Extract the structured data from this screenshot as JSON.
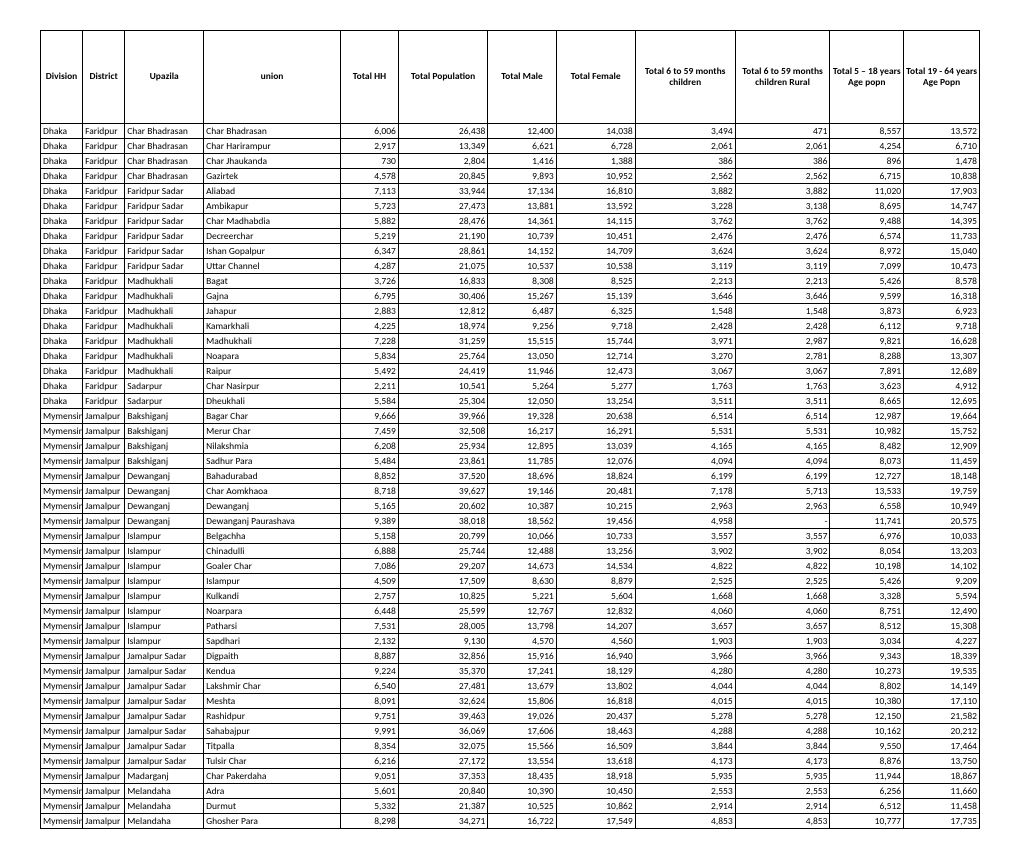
{
  "columns": [
    "Division",
    "District",
    "Upazila",
    "union",
    "Total HH",
    "Total Population",
    "Total Male",
    "Total Female",
    "Total 6 to  59 months children",
    "Total 6 to  59 months children Rural",
    "Total 5 – 18 years Age popn",
    "Total 19 - 64 years Age  Popn"
  ],
  "col_align": [
    "txt",
    "txt",
    "txt",
    "txt",
    "num",
    "num",
    "num",
    "num",
    "num",
    "num",
    "num",
    "num"
  ],
  "rows": [
    [
      "Dhaka",
      "Faridpur",
      "Char Bhadrasan",
      "Char Bhadrasan",
      "6,006",
      "26,438",
      "12,400",
      "14,038",
      "3,494",
      "471",
      "8,557",
      "13,572"
    ],
    [
      "Dhaka",
      "Faridpur",
      "Char Bhadrasan",
      "Char Harirampur",
      "2,917",
      "13,349",
      "6,621",
      "6,728",
      "2,061",
      "2,061",
      "4,254",
      "6,710"
    ],
    [
      "Dhaka",
      "Faridpur",
      "Char Bhadrasan",
      "Char Jhaukanda",
      "730",
      "2,804",
      "1,416",
      "1,388",
      "386",
      "386",
      "896",
      "1,478"
    ],
    [
      "Dhaka",
      "Faridpur",
      "Char Bhadrasan",
      "Gazirtek",
      "4,578",
      "20,845",
      "9,893",
      "10,952",
      "2,562",
      "2,562",
      "6,715",
      "10,838"
    ],
    [
      "Dhaka",
      "Faridpur",
      "Faridpur Sadar",
      "Aliabad",
      "7,113",
      "33,944",
      "17,134",
      "16,810",
      "3,882",
      "3,882",
      "11,020",
      "17,903"
    ],
    [
      "Dhaka",
      "Faridpur",
      "Faridpur Sadar",
      "Ambikapur",
      "5,723",
      "27,473",
      "13,881",
      "13,592",
      "3,228",
      "3,138",
      "8,695",
      "14,747"
    ],
    [
      "Dhaka",
      "Faridpur",
      "Faridpur Sadar",
      "Char Madhabdia",
      "5,882",
      "28,476",
      "14,361",
      "14,115",
      "3,762",
      "3,762",
      "9,488",
      "14,395"
    ],
    [
      "Dhaka",
      "Faridpur",
      "Faridpur Sadar",
      "Decreerchar",
      "5,219",
      "21,190",
      "10,739",
      "10,451",
      "2,476",
      "2,476",
      "6,574",
      "11,733"
    ],
    [
      "Dhaka",
      "Faridpur",
      "Faridpur Sadar",
      "Ishan Gopalpur",
      "6,347",
      "28,861",
      "14,152",
      "14,709",
      "3,624",
      "3,624",
      "8,972",
      "15,040"
    ],
    [
      "Dhaka",
      "Faridpur",
      "Faridpur Sadar",
      "Uttar Channel",
      "4,287",
      "21,075",
      "10,537",
      "10,538",
      "3,119",
      "3,119",
      "7,099",
      "10,473"
    ],
    [
      "Dhaka",
      "Faridpur",
      "Madhukhali",
      "Bagat",
      "3,726",
      "16,833",
      "8,308",
      "8,525",
      "2,213",
      "2,213",
      "5,426",
      "8,578"
    ],
    [
      "Dhaka",
      "Faridpur",
      "Madhukhali",
      "Gajna",
      "6,795",
      "30,406",
      "15,267",
      "15,139",
      "3,646",
      "3,646",
      "9,599",
      "16,318"
    ],
    [
      "Dhaka",
      "Faridpur",
      "Madhukhali",
      "Jahapur",
      "2,883",
      "12,812",
      "6,487",
      "6,325",
      "1,548",
      "1,548",
      "3,873",
      "6,923"
    ],
    [
      "Dhaka",
      "Faridpur",
      "Madhukhali",
      "Kamarkhali",
      "4,225",
      "18,974",
      "9,256",
      "9,718",
      "2,428",
      "2,428",
      "6,112",
      "9,718"
    ],
    [
      "Dhaka",
      "Faridpur",
      "Madhukhali",
      "Madhukhali",
      "7,228",
      "31,259",
      "15,515",
      "15,744",
      "3,971",
      "2,987",
      "9,821",
      "16,628"
    ],
    [
      "Dhaka",
      "Faridpur",
      "Madhukhali",
      "Noapara",
      "5,834",
      "25,764",
      "13,050",
      "12,714",
      "3,270",
      "2,781",
      "8,288",
      "13,307"
    ],
    [
      "Dhaka",
      "Faridpur",
      "Madhukhali",
      "Raipur",
      "5,492",
      "24,419",
      "11,946",
      "12,473",
      "3,067",
      "3,067",
      "7,891",
      "12,689"
    ],
    [
      "Dhaka",
      "Faridpur",
      "Sadarpur",
      "Char Nasirpur",
      "2,211",
      "10,541",
      "5,264",
      "5,277",
      "1,763",
      "1,763",
      "3,623",
      "4,912"
    ],
    [
      "Dhaka",
      "Faridpur",
      "Sadarpur",
      "Dheukhali",
      "5,584",
      "25,304",
      "12,050",
      "13,254",
      "3,511",
      "3,511",
      "8,665",
      "12,695"
    ],
    [
      "Mymensingh",
      "Jamalpur",
      "Bakshiganj",
      "Bagar Char",
      "9,666",
      "39,966",
      "19,328",
      "20,638",
      "6,514",
      "6,514",
      "12,987",
      "19,664"
    ],
    [
      "Mymensingh",
      "Jamalpur",
      "Bakshiganj",
      "Merur Char",
      "7,459",
      "32,508",
      "16,217",
      "16,291",
      "5,531",
      "5,531",
      "10,982",
      "15,752"
    ],
    [
      "Mymensingh",
      "Jamalpur",
      "Bakshiganj",
      "Nilakshmia",
      "6,208",
      "25,934",
      "12,895",
      "13,039",
      "4,165",
      "4,165",
      "8,482",
      "12,909"
    ],
    [
      "Mymensingh",
      "Jamalpur",
      "Bakshiganj",
      "Sadhur Para",
      "5,484",
      "23,861",
      "11,785",
      "12,076",
      "4,094",
      "4,094",
      "8,073",
      "11,459"
    ],
    [
      "Mymensingh",
      "Jamalpur",
      "Dewanganj",
      "Bahadurabad",
      "8,852",
      "37,520",
      "18,696",
      "18,824",
      "6,199",
      "6,199",
      "12,727",
      "18,148"
    ],
    [
      "Mymensingh",
      "Jamalpur",
      "Dewanganj",
      "Char Aomkhaoa",
      "8,718",
      "39,627",
      "19,146",
      "20,481",
      "7,178",
      "5,713",
      "13,533",
      "19,759"
    ],
    [
      "Mymensingh",
      "Jamalpur",
      "Dewanganj",
      "Dewanganj",
      "5,165",
      "20,602",
      "10,387",
      "10,215",
      "2,963",
      "2,963",
      "6,558",
      "10,949"
    ],
    [
      "Mymensingh",
      "Jamalpur",
      "Dewanganj",
      "Dewanganj Paurashava",
      "9,389",
      "38,018",
      "18,562",
      "19,456",
      "4,958",
      "-",
      "11,741",
      "20,575"
    ],
    [
      "Mymensingh",
      "Jamalpur",
      "Islampur",
      "Belgachha",
      "5,158",
      "20,799",
      "10,066",
      "10,733",
      "3,557",
      "3,557",
      "6,976",
      "10,033"
    ],
    [
      "Mymensingh",
      "Jamalpur",
      "Islampur",
      "Chinadulli",
      "6,888",
      "25,744",
      "12,488",
      "13,256",
      "3,902",
      "3,902",
      "8,054",
      "13,203"
    ],
    [
      "Mymensingh",
      "Jamalpur",
      "Islampur",
      "Goaler Char",
      "7,086",
      "29,207",
      "14,673",
      "14,534",
      "4,822",
      "4,822",
      "10,198",
      "14,102"
    ],
    [
      "Mymensingh",
      "Jamalpur",
      "Islampur",
      "Islampur",
      "4,509",
      "17,509",
      "8,630",
      "8,879",
      "2,525",
      "2,525",
      "5,426",
      "9,209"
    ],
    [
      "Mymensingh",
      "Jamalpur",
      "Islampur",
      "Kulkandi",
      "2,757",
      "10,825",
      "5,221",
      "5,604",
      "1,668",
      "1,668",
      "3,328",
      "5,594"
    ],
    [
      "Mymensingh",
      "Jamalpur",
      "Islampur",
      "Noarpara",
      "6,448",
      "25,599",
      "12,767",
      "12,832",
      "4,060",
      "4,060",
      "8,751",
      "12,490"
    ],
    [
      "Mymensingh",
      "Jamalpur",
      "Islampur",
      "Patharsi",
      "7,531",
      "28,005",
      "13,798",
      "14,207",
      "3,657",
      "3,657",
      "8,512",
      "15,308"
    ],
    [
      "Mymensingh",
      "Jamalpur",
      "Islampur",
      "Sapdhari",
      "2,132",
      "9,130",
      "4,570",
      "4,560",
      "1,903",
      "1,903",
      "3,034",
      "4,227"
    ],
    [
      "Mymensingh",
      "Jamalpur",
      "Jamalpur Sadar",
      "Digpaith",
      "8,887",
      "32,856",
      "15,916",
      "16,940",
      "3,966",
      "3,966",
      "9,343",
      "18,339"
    ],
    [
      "Mymensingh",
      "Jamalpur",
      "Jamalpur Sadar",
      "Kendua",
      "9,224",
      "35,370",
      "17,241",
      "18,129",
      "4,280",
      "4,280",
      "10,273",
      "19,535"
    ],
    [
      "Mymensingh",
      "Jamalpur",
      "Jamalpur Sadar",
      "Lakshmir Char",
      "6,540",
      "27,481",
      "13,679",
      "13,802",
      "4,044",
      "4,044",
      "8,802",
      "14,149"
    ],
    [
      "Mymensingh",
      "Jamalpur",
      "Jamalpur Sadar",
      "Meshta",
      "8,091",
      "32,624",
      "15,806",
      "16,818",
      "4,015",
      "4,015",
      "10,380",
      "17,110"
    ],
    [
      "Mymensingh",
      "Jamalpur",
      "Jamalpur Sadar",
      "Rashidpur",
      "9,751",
      "39,463",
      "19,026",
      "20,437",
      "5,278",
      "5,278",
      "12,150",
      "21,582"
    ],
    [
      "Mymensingh",
      "Jamalpur",
      "Jamalpur Sadar",
      "Sahabajpur",
      "9,991",
      "36,069",
      "17,606",
      "18,463",
      "4,288",
      "4,288",
      "10,162",
      "20,212"
    ],
    [
      "Mymensingh",
      "Jamalpur",
      "Jamalpur Sadar",
      "Titpalla",
      "8,354",
      "32,075",
      "15,566",
      "16,509",
      "3,844",
      "3,844",
      "9,550",
      "17,464"
    ],
    [
      "Mymensingh",
      "Jamalpur",
      "Jamalpur Sadar",
      "Tulsir Char",
      "6,216",
      "27,172",
      "13,554",
      "13,618",
      "4,173",
      "4,173",
      "8,876",
      "13,750"
    ],
    [
      "Mymensingh",
      "Jamalpur",
      "Madarganj",
      "Char Pakerdaha",
      "9,051",
      "37,353",
      "18,435",
      "18,918",
      "5,935",
      "5,935",
      "11,944",
      "18,867"
    ],
    [
      "Mymensingh",
      "Jamalpur",
      "Melandaha",
      "Adra",
      "5,601",
      "20,840",
      "10,390",
      "10,450",
      "2,553",
      "2,553",
      "6,256",
      "11,660"
    ],
    [
      "Mymensingh",
      "Jamalpur",
      "Melandaha",
      "Durmut",
      "5,332",
      "21,387",
      "10,525",
      "10,862",
      "2,914",
      "2,914",
      "6,512",
      "11,458"
    ],
    [
      "Mymensingh",
      "Jamalpur",
      "Melandaha",
      "Ghosher Para",
      "8,298",
      "34,271",
      "16,722",
      "17,549",
      "4,853",
      "4,853",
      "10,777",
      "17,735"
    ]
  ]
}
